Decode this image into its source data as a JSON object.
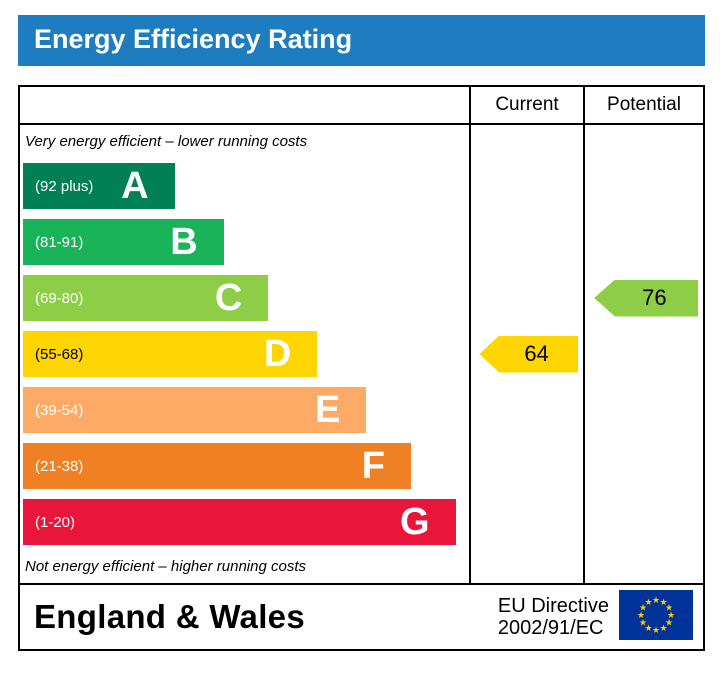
{
  "title": "Energy Efficiency Rating",
  "colors": {
    "title_bar": "#1e7dc1",
    "title_text": "#ffffff",
    "border": "#000000"
  },
  "table": {
    "header": {
      "current": "Current",
      "potential": "Potential"
    },
    "top_note": "Very energy efficient – lower running costs",
    "bottom_note": "Not energy efficient – higher running costs"
  },
  "bands": [
    {
      "letter": "A",
      "range": "(92 plus)",
      "color": "#008054",
      "width_pct": 34,
      "range_color": "#ffffff"
    },
    {
      "letter": "B",
      "range": "(81-91)",
      "color": "#19b459",
      "width_pct": 45,
      "range_color": "#ffffff"
    },
    {
      "letter": "C",
      "range": "(69-80)",
      "color": "#8dce46",
      "width_pct": 55,
      "range_color": "#ffffff"
    },
    {
      "letter": "D",
      "range": "(55-68)",
      "color": "#ffd500",
      "width_pct": 66,
      "range_color": "#000000"
    },
    {
      "letter": "E",
      "range": "(39-54)",
      "color": "#fcaa65",
      "width_pct": 77,
      "range_color": "#ffffff"
    },
    {
      "letter": "F",
      "range": "(21-38)",
      "color": "#ef8023",
      "width_pct": 87,
      "range_color": "#ffffff"
    },
    {
      "letter": "G",
      "range": "(1-20)",
      "color": "#e9153b",
      "width_pct": 97,
      "range_color": "#ffffff"
    }
  ],
  "current": {
    "value": 64,
    "band": "D",
    "color": "#ffd500"
  },
  "potential": {
    "value": 76,
    "band": "C",
    "color": "#8dce46"
  },
  "footer": {
    "region": "England & Wales",
    "directive_line1": "EU Directive",
    "directive_line2": "2002/91/EC",
    "flag_icon": "eu-flag",
    "flag_blue": "#003399",
    "flag_star_color": "#ffcc00"
  },
  "chart_data": {
    "type": "bar",
    "title": "Energy Efficiency Rating",
    "categories": [
      "A (92 plus)",
      "B (81-91)",
      "C (69-80)",
      "D (55-68)",
      "E (39-54)",
      "F (21-38)",
      "G (1-20)"
    ],
    "values": [
      34,
      45,
      55,
      66,
      77,
      87,
      97
    ],
    "value_note": "bar lengths in % of scale column width; band score ranges A:92+, B:81-91, C:69-80, D:55-68, E:39-54, F:21-38, G:1-20",
    "markers": [
      {
        "name": "Current",
        "value": 64,
        "band": "D"
      },
      {
        "name": "Potential",
        "value": 76,
        "band": "C"
      }
    ],
    "top_note": "Very energy efficient – lower running costs",
    "bottom_note": "Not energy efficient – higher running costs",
    "footer": "England & Wales — EU Directive 2002/91/EC"
  }
}
